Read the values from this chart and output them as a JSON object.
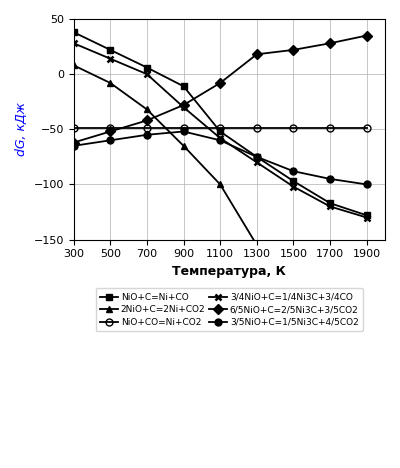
{
  "xlabel": "Температура, К",
  "ylabel": "dG, кДж",
  "xlim": [
    300,
    2000
  ],
  "ylim": [
    -150,
    50
  ],
  "xticks": [
    300,
    500,
    700,
    900,
    1100,
    1300,
    1500,
    1700,
    1900
  ],
  "yticks": [
    -150,
    -100,
    -50,
    0,
    50
  ],
  "T": [
    300,
    500,
    700,
    900,
    1100,
    1300,
    1500,
    1700,
    1900
  ],
  "T2": [
    300,
    500,
    700,
    900,
    1100,
    1300
  ],
  "y_NiO_C_Ni_CO": [
    38,
    22,
    6,
    -11,
    -52,
    -75,
    -97,
    -117,
    -128
  ],
  "y_2NiO_C_2Ni_CO2": [
    8,
    -8,
    -32,
    -65,
    -100,
    -155
  ],
  "y_NiO_CO_Ni_CO2": [
    -49,
    -49,
    -49,
    -49,
    -49,
    -49,
    -49,
    -49,
    -49
  ],
  "y_34NiO_C": [
    28,
    14,
    0,
    -30,
    -58,
    -80,
    -102,
    -120,
    -130
  ],
  "y_65NiO_C_diamond": [
    -62,
    -52,
    -42,
    -28,
    -8,
    18,
    22,
    28,
    35
  ],
  "y_35NiO_C_circle": [
    -65,
    -60,
    -55,
    -52,
    -60,
    -75,
    -88,
    -95,
    -100
  ],
  "legend": [
    "NiO+C=Ni+CO",
    "2NiO+C=2Ni+CO2",
    "NiO+CO=Ni+CO2",
    "3/4NiO+C=1/4Ni3C+3/4CO",
    "6/5NiO+C=2/5Ni3C+3/5CO2",
    "3/5NiO+C=1/5Ni3C+4/5CO2"
  ]
}
